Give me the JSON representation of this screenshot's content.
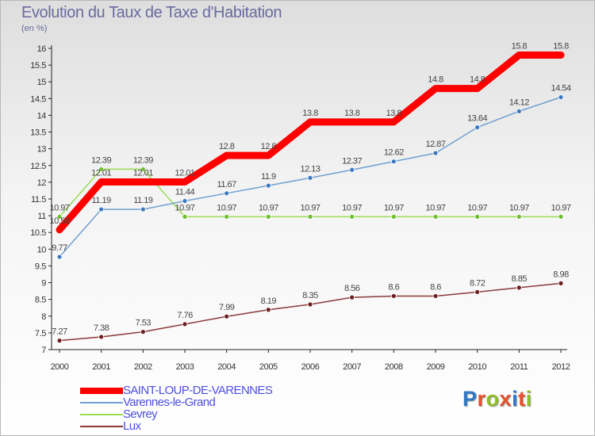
{
  "title": "Evolution du Taux de Taxe d'Habitation",
  "unit_label": "(en %)",
  "logo": {
    "text": "Proxiti",
    "letter_colors": [
      "#2f78c8",
      "#e8502a",
      "#8fbf2a",
      "#e8502a",
      "#2f78c8",
      "#e8502a",
      "#8fbf2a"
    ]
  },
  "chart_data": {
    "type": "line",
    "x": [
      "2000",
      "2001",
      "2002",
      "2003",
      "2004",
      "2005",
      "2006",
      "2007",
      "2008",
      "2009",
      "2010",
      "2011",
      "2012"
    ],
    "ylim": [
      7,
      16
    ],
    "yticks": [
      "7",
      "7.5",
      "8",
      "8.5",
      "9",
      "9.5",
      "10",
      "10.5",
      "11",
      "11.5",
      "12",
      "12.5",
      "13",
      "13.5",
      "14",
      "14.5",
      "15",
      "15.5",
      "16"
    ],
    "grid": false,
    "legend_position": "bottom-left",
    "series": [
      {
        "name": "SAINT-LOUP-DE-VARENNES",
        "color": "#ff0000",
        "values": [
          10.58,
          12.01,
          12.01,
          12.01,
          12.8,
          12.8,
          13.8,
          13.8,
          13.8,
          14.8,
          14.8,
          15.8,
          15.8
        ],
        "labels": [
          "10.58",
          "12.01",
          "12.01",
          "12.01",
          "12.8",
          "12.8",
          "13.8",
          "13.8",
          "13.8",
          "14.8",
          "14.8",
          "15.8",
          "15.8"
        ]
      },
      {
        "name": "Varennes-le-Grand",
        "color": "#6fa0d0",
        "marker": "#3a78c0",
        "values": [
          9.77,
          11.19,
          11.19,
          11.44,
          11.67,
          11.9,
          12.13,
          12.37,
          12.62,
          12.87,
          13.64,
          14.12,
          14.54
        ],
        "labels": [
          "9.77",
          "11.19",
          "11.19",
          "11.44",
          "11.67",
          "11.9",
          "12.13",
          "12.37",
          "12.62",
          "12.87",
          "13.64",
          "14.12",
          "14.54"
        ]
      },
      {
        "name": "Sevrey",
        "color": "#99dd55",
        "marker": "#6cbf2a",
        "values": [
          10.97,
          12.39,
          12.39,
          10.97,
          10.97,
          10.97,
          10.97,
          10.97,
          10.97,
          10.97,
          10.97,
          10.97,
          10.97
        ],
        "labels": [
          "10.97",
          "12.39",
          "12.39",
          "10.97",
          "10.97",
          "10.97",
          "10.97",
          "10.97",
          "10.97",
          "10.97",
          "10.97",
          "10.97",
          "10.97"
        ]
      },
      {
        "name": "Lux",
        "color": "#8b3a3a",
        "marker": "#6e1e1e",
        "values": [
          7.27,
          7.38,
          7.53,
          7.76,
          7.99,
          8.19,
          8.35,
          8.56,
          8.6,
          8.6,
          8.72,
          8.85,
          8.98
        ],
        "labels": [
          "7.27",
          "7.38",
          "7.53",
          "7.76",
          "7.99",
          "8.19",
          "8.35",
          "8.56",
          "8.6",
          "8.6",
          "8.72",
          "8.85",
          "8.98"
        ]
      }
    ]
  }
}
